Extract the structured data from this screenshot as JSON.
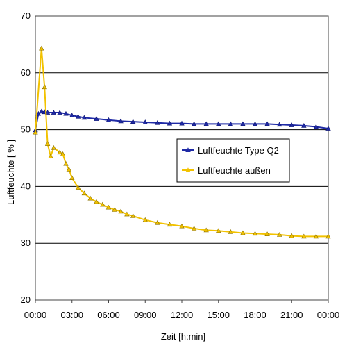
{
  "chart_data": {
    "type": "line",
    "title": "",
    "xlabel": "Zeit [h:min]",
    "ylabel": "Luftfeuchte [ % ]",
    "ylim": [
      20,
      70
    ],
    "yticks": [
      20,
      30,
      40,
      50,
      60,
      70
    ],
    "xlim": [
      0,
      24
    ],
    "xticks": [
      "00:00",
      "03:00",
      "06:00",
      "09:00",
      "12:00",
      "15:00",
      "18:00",
      "21:00",
      "00:00"
    ],
    "grid": "horizontal",
    "legend_position": "center-right",
    "series": [
      {
        "name": "Luftfeuchte Type Q2",
        "color": "#1f2aa6",
        "marker": "triangle",
        "x": [
          0,
          0.25,
          0.5,
          0.75,
          1,
          1.5,
          2,
          2.5,
          3,
          3.5,
          4,
          5,
          6,
          7,
          8,
          9,
          10,
          11,
          12,
          13,
          14,
          15,
          16,
          17,
          18,
          19,
          20,
          21,
          22,
          23,
          24
        ],
        "y": [
          49.9,
          52.8,
          53.2,
          53.1,
          53.0,
          53.0,
          53.0,
          52.8,
          52.5,
          52.3,
          52.1,
          51.9,
          51.7,
          51.5,
          51.4,
          51.3,
          51.2,
          51.1,
          51.1,
          51.0,
          51.0,
          51.0,
          51.0,
          51.0,
          51.0,
          51.0,
          50.9,
          50.8,
          50.7,
          50.5,
          50.2
        ]
      },
      {
        "name": "Luftfeuchte außen",
        "color": "#f2c200",
        "marker": "triangle",
        "x": [
          0,
          0.5,
          0.75,
          1,
          1.25,
          1.5,
          2,
          2.25,
          2.5,
          2.75,
          3,
          3.5,
          4,
          4.5,
          5,
          5.5,
          6,
          6.5,
          7,
          7.5,
          8,
          9,
          10,
          11,
          12,
          13,
          14,
          15,
          16,
          17,
          18,
          19,
          20,
          21,
          22,
          23,
          24
        ],
        "y": [
          49.5,
          64.3,
          57.5,
          47.5,
          45.3,
          46.8,
          46.0,
          45.7,
          44.0,
          43.0,
          41.5,
          39.8,
          38.8,
          37.9,
          37.3,
          36.8,
          36.3,
          35.9,
          35.6,
          35.1,
          34.8,
          34.1,
          33.6,
          33.3,
          33.0,
          32.6,
          32.3,
          32.2,
          32.0,
          31.8,
          31.7,
          31.6,
          31.5,
          31.3,
          31.2,
          31.2,
          31.2
        ]
      }
    ]
  }
}
